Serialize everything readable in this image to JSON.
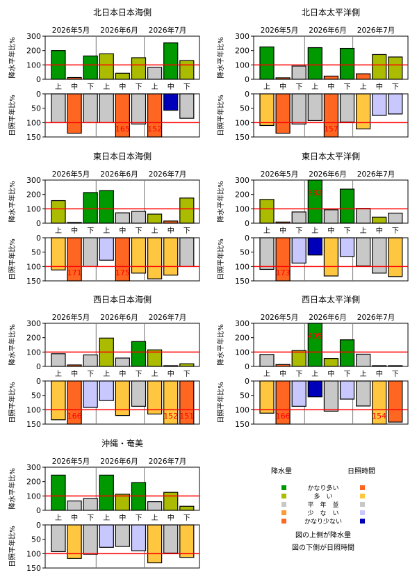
{
  "months": [
    "2026年5月",
    "2026年6月",
    "2026年7月"
  ],
  "dekads": [
    "上",
    "中",
    "下",
    "上",
    "中",
    "下",
    "上",
    "中",
    "下"
  ],
  "precip_axis_label": "降水平年比%",
  "sun_axis_label": "日照平年比%",
  "precip_ticks": [
    "0",
    "100",
    "200",
    "300"
  ],
  "sun_ticks": [
    "0",
    "50",
    "100",
    "150"
  ],
  "colors": {
    "precip": {
      "much_above": "#009900",
      "above": "#aabb00",
      "normal": "#c8c8c8",
      "below": "#ff9933",
      "much_below": "#ff6622"
    },
    "sun": {
      "much_above": "#ff6622",
      "above": "#ffc640",
      "normal": "#c8c8c8",
      "below": "#c8c8ff",
      "much_below": "#0000bb"
    },
    "normal_line": "#ff0000",
    "outlier_text": "#ff0000"
  },
  "chart_data": [
    {
      "type": "bar",
      "title": "北日本日本海側",
      "ylim_precip": [
        0,
        300
      ],
      "ylim_sun": [
        0,
        150
      ],
      "precip": {
        "values": [
          200,
          12,
          162,
          177,
          42,
          150,
          83,
          253,
          130
        ],
        "classes": [
          "much_above",
          "much_below",
          "much_above",
          "above",
          "above",
          "above",
          "normal",
          "much_above",
          "above"
        ],
        "labels": [
          "",
          "",
          "",
          "",
          "",
          "",
          "",
          "",
          ""
        ]
      },
      "sun": {
        "values": [
          100,
          137,
          100,
          100,
          165,
          105,
          152,
          57,
          85
        ],
        "classes": [
          "normal",
          "much_above",
          "normal",
          "normal",
          "much_above",
          "normal",
          "much_above",
          "much_below",
          "normal"
        ],
        "labels": [
          "",
          "",
          "",
          "",
          "165",
          "",
          "152",
          "",
          ""
        ]
      }
    },
    {
      "type": "bar",
      "title": "北日本太平洋側",
      "ylim_precip": [
        0,
        300
      ],
      "ylim_sun": [
        0,
        150
      ],
      "precip": {
        "values": [
          225,
          10,
          92,
          220,
          22,
          215,
          38,
          172,
          155
        ],
        "classes": [
          "much_above",
          "much_below",
          "normal",
          "much_above",
          "much_below",
          "much_above",
          "much_below",
          "above",
          "above"
        ],
        "labels": [
          "",
          "",
          "",
          "",
          "",
          "",
          "",
          "",
          ""
        ]
      },
      "sun": {
        "values": [
          110,
          137,
          105,
          93,
          157,
          98,
          122,
          75,
          70
        ],
        "classes": [
          "above",
          "much_above",
          "normal",
          "normal",
          "much_above",
          "normal",
          "above",
          "below",
          "below"
        ],
        "labels": [
          "",
          "",
          "",
          "",
          "157",
          "",
          "",
          "",
          ""
        ]
      }
    },
    {
      "type": "bar",
      "title": "東日本日本海側",
      "ylim_precip": [
        0,
        300
      ],
      "ylim_sun": [
        0,
        150
      ],
      "precip": {
        "values": [
          157,
          5,
          213,
          227,
          72,
          82,
          63,
          15,
          175
        ],
        "classes": [
          "above",
          "much_below",
          "much_above",
          "much_above",
          "normal",
          "normal",
          "above",
          "much_below",
          "above"
        ],
        "labels": [
          "",
          "",
          "",
          "",
          "",
          "",
          "",
          "",
          ""
        ]
      },
      "sun": {
        "values": [
          112,
          171,
          100,
          78,
          175,
          123,
          143,
          130,
          100
        ],
        "classes": [
          "above",
          "much_above",
          "normal",
          "below",
          "much_above",
          "above",
          "above",
          "above",
          "normal"
        ],
        "labels": [
          "",
          "171",
          "",
          "",
          "175",
          "",
          "",
          "",
          ""
        ]
      }
    },
    {
      "type": "bar",
      "title": "東日本太平洋側",
      "ylim_precip": [
        0,
        300
      ],
      "ylim_sun": [
        0,
        150
      ],
      "precip": {
        "values": [
          165,
          8,
          78,
          382,
          93,
          237,
          103,
          42,
          70
        ],
        "classes": [
          "above",
          "much_below",
          "normal",
          "much_above",
          "normal",
          "much_above",
          "normal",
          "above",
          "normal"
        ],
        "labels": [
          "",
          "",
          "",
          "382",
          "",
          "",
          "",
          "",
          ""
        ]
      },
      "sun": {
        "values": [
          110,
          173,
          88,
          60,
          133,
          65,
          98,
          123,
          135
        ],
        "classes": [
          "normal",
          "much_above",
          "below",
          "much_below",
          "above",
          "below",
          "normal",
          "normal",
          "above"
        ],
        "labels": [
          "",
          "173",
          "",
          "",
          "",
          "",
          "",
          "",
          ""
        ]
      }
    },
    {
      "type": "bar",
      "title": "西日本日本海側",
      "ylim_precip": [
        0,
        300
      ],
      "ylim_sun": [
        0,
        150
      ],
      "precip": {
        "values": [
          88,
          10,
          80,
          197,
          58,
          173,
          115,
          5,
          18
        ],
        "classes": [
          "normal",
          "much_below",
          "normal",
          "above",
          "normal",
          "much_above",
          "above",
          "much_below",
          "above"
        ],
        "labels": [
          "",
          "",
          "",
          "",
          "",
          "",
          "",
          "",
          ""
        ]
      },
      "sun": {
        "values": [
          135,
          166,
          92,
          68,
          120,
          88,
          115,
          152,
          151
        ],
        "classes": [
          "above",
          "much_above",
          "below",
          "below",
          "above",
          "normal",
          "above",
          "above",
          "much_above"
        ],
        "labels": [
          "",
          "166",
          "",
          "",
          "",
          "",
          "",
          "152",
          "151"
        ]
      }
    },
    {
      "type": "bar",
      "title": "西日本太平洋側",
      "ylim_precip": [
        0,
        300
      ],
      "ylim_sun": [
        0,
        150
      ],
      "precip": {
        "values": [
          83,
          13,
          110,
          405,
          55,
          185,
          85,
          5,
          5
        ],
        "classes": [
          "normal",
          "much_below",
          "above",
          "much_above",
          "above",
          "much_above",
          "normal",
          "much_below",
          "much_below"
        ],
        "labels": [
          "",
          "",
          "",
          "405",
          "",
          "",
          "",
          "",
          ""
        ]
      },
      "sun": {
        "values": [
          112,
          166,
          88,
          55,
          105,
          63,
          87,
          154,
          143
        ],
        "classes": [
          "above",
          "much_above",
          "below",
          "much_below",
          "normal",
          "below",
          "normal",
          "above",
          "much_above"
        ],
        "labels": [
          "",
          "166",
          "",
          "",
          "",
          "",
          "",
          "154",
          ""
        ]
      }
    },
    {
      "type": "bar",
      "title": "沖縄・奄美",
      "ylim_precip": [
        0,
        300
      ],
      "ylim_sun": [
        0,
        150
      ],
      "precip": {
        "values": [
          245,
          65,
          82,
          245,
          112,
          193,
          60,
          125,
          28
        ],
        "classes": [
          "much_above",
          "normal",
          "normal",
          "much_above",
          "above",
          "much_above",
          "normal",
          "above",
          "above"
        ],
        "labels": [
          "",
          "",
          "",
          "",
          "",
          "",
          "",
          "",
          ""
        ]
      },
      "sun": {
        "values": [
          93,
          117,
          102,
          78,
          75,
          90,
          132,
          98,
          113
        ],
        "classes": [
          "normal",
          "above",
          "normal",
          "below",
          "normal",
          "below",
          "above",
          "normal",
          "above"
        ],
        "labels": [
          "",
          "",
          "",
          "",
          "",
          "",
          "",
          "",
          ""
        ]
      }
    }
  ],
  "legend": {
    "precip_header": "降水量",
    "sun_header": "日照時間",
    "categories": [
      {
        "key": "much_above",
        "label": "かなり多い"
      },
      {
        "key": "above",
        "label": "多　い"
      },
      {
        "key": "normal",
        "label": "平　年　並"
      },
      {
        "key": "below",
        "label": "少　な　い"
      },
      {
        "key": "much_below",
        "label": "かなり少ない"
      }
    ],
    "note_top": "図の上側が降水量",
    "note_bottom": "図の下側が日照時間"
  }
}
